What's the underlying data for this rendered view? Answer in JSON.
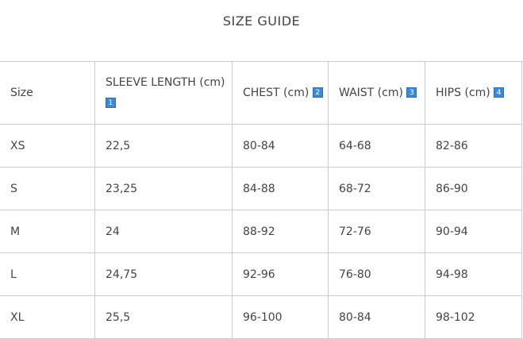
{
  "title": "SIZE GUIDE",
  "headers": [
    {
      "label": "Size",
      "badge": null
    },
    {
      "label": "SLEEVE LENGTH (cm)",
      "badge": "1"
    },
    {
      "label": "CHEST (cm)",
      "badge": "2"
    },
    {
      "label": "WAIST (cm)",
      "badge": "3"
    },
    {
      "label": "HIPS (cm)",
      "badge": "4"
    }
  ],
  "rows": [
    [
      "XS",
      "22,5",
      "80-84",
      "64-68",
      "82-86"
    ],
    [
      "S",
      "23,25",
      "84-88",
      "68-72",
      "86-90"
    ],
    [
      "M",
      "24",
      "88-92",
      "72-76",
      "90-94"
    ],
    [
      "L",
      "24,75",
      "92-96",
      "76-80",
      "94-98"
    ],
    [
      "XL",
      "25,5",
      "96-100",
      "80-84",
      "98-102"
    ]
  ],
  "colors": {
    "badge": "#3a8ad8",
    "text": "#444444",
    "border": "#cccccc"
  }
}
